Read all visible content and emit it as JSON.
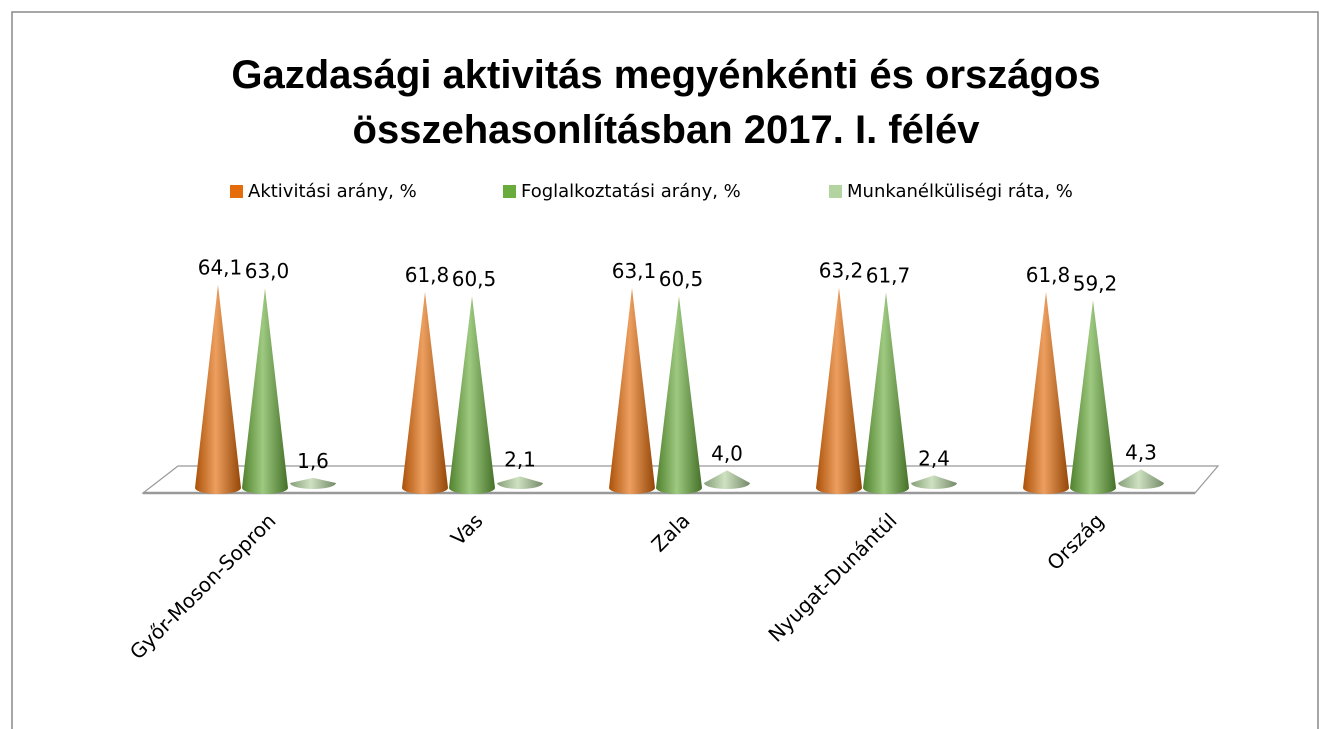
{
  "chart_data": {
    "type": "cone3d",
    "title": [
      "Gazdasági aktivitás  megyénkénti és országos",
      "összehasonlításban 2017. I. félév"
    ],
    "categories": [
      "Győr-Moson-Sopron",
      "Vas",
      "Zala",
      "Nyugat-Dunántúl",
      "Ország"
    ],
    "series": [
      {
        "name": "Aktivitási arány, %",
        "color": "#e46c0a",
        "values": [
          64.1,
          61.8,
          63.1,
          63.2,
          61.8
        ],
        "value_labels": [
          "64,1",
          "61,8",
          "63,1",
          "63,2",
          "61,8"
        ]
      },
      {
        "name": "Foglalkoztatási arány, %",
        "color": "#6aac3c",
        "values": [
          63.0,
          60.5,
          60.5,
          61.7,
          59.2
        ],
        "value_labels": [
          "63,0",
          "60,5",
          "60,5",
          "61,7",
          "59,2"
        ]
      },
      {
        "name": "Munkanélküliségi ráta, %",
        "color": "#b3d3a0",
        "values": [
          1.6,
          2.1,
          4.0,
          2.4,
          4.3
        ],
        "value_labels": [
          "1,6",
          "2,1",
          "4,0",
          "2,4",
          "4,3"
        ]
      }
    ],
    "ylim": [
      0,
      70
    ],
    "legend": "top"
  }
}
